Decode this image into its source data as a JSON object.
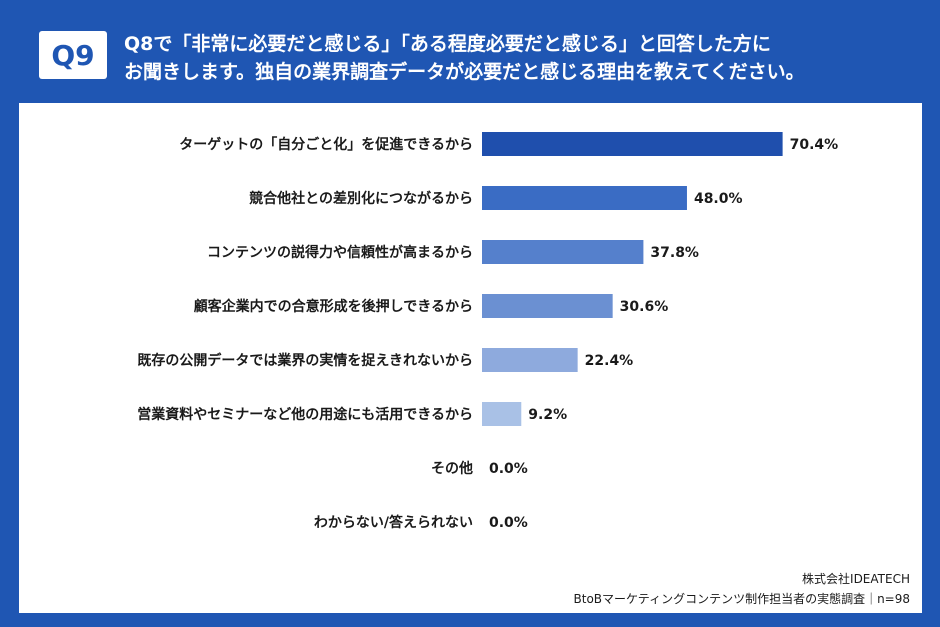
{
  "header": {
    "badge": "Q9",
    "title_line1": "Q8で「非常に必要だと感じる」「ある程度必要だと感じる」と回答した方に",
    "title_line2": "お聞きします。独自の業界調査データが必要だと感じる理由を教えてください。"
  },
  "footer": {
    "company": "株式会社IDEATECH",
    "survey": "BtoBマーケティングコンテンツ制作担当者の実態調査｜n=98"
  },
  "colors": {
    "background": "#1f56b3",
    "bars": [
      "#1f4fad",
      "#3a6cc4",
      "#5580cc",
      "#6b90d2",
      "#8eaadd",
      "#a9c1e6",
      "#c0d2ee",
      "#c0d2ee"
    ]
  },
  "chart_data": {
    "type": "bar",
    "orientation": "horizontal",
    "categories": [
      "ターゲットの「自分ごと化」を促進できるから",
      "競合他社との差別化につながるから",
      "コンテンツの説得力や信頼性が高まるから",
      "顧客企業内での合意形成を後押しできるから",
      "既存の公開データでは業界の実情を捉えきれないから",
      "営業資料やセミナーなど他の用途にも活用できるから",
      "その他",
      "わからない/答えられない"
    ],
    "values": [
      70.4,
      48.0,
      37.8,
      30.6,
      22.4,
      9.2,
      0.0,
      0.0
    ],
    "value_labels": [
      "70.4%",
      "48.0%",
      "37.8%",
      "30.6%",
      "22.4%",
      "9.2%",
      "0.0%",
      "0.0%"
    ],
    "xlim": [
      0,
      100
    ]
  }
}
